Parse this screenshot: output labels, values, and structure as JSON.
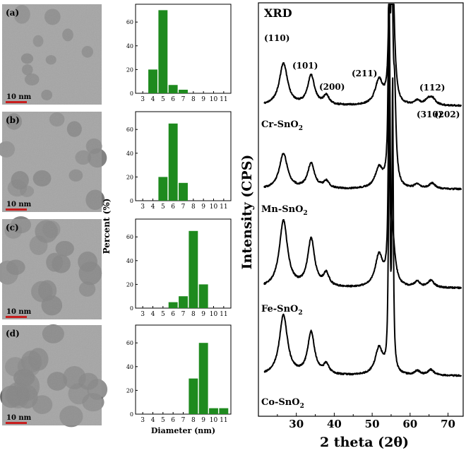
{
  "panels": [
    {
      "label": "(a)",
      "scale_bar": "10 nm"
    },
    {
      "label": "(b)",
      "scale_bar": "10 nm"
    },
    {
      "label": "(c)",
      "scale_bar": "10 nm"
    },
    {
      "label": "(d)",
      "scale_bar": "10 nm"
    }
  ],
  "histograms": {
    "ylabel": "Percent (%)",
    "xlabel": "Diameter (nm)",
    "bar_color": "#1e8a1e",
    "tem_colors": {
      "bg": "#8d8d8d",
      "particle": "#4a4a4a",
      "scale": "#c81e1e"
    }
  },
  "xrd": {
    "title": "XRD",
    "line_color": "#000000",
    "peak_labels": [
      "(110)",
      "(101)",
      "(200)",
      "(211)",
      "(112)",
      "(310)",
      "(202)"
    ],
    "sample_labels": [
      {
        "base": "Cr-SnO",
        "sub": "2"
      },
      {
        "base": "Mn-SnO",
        "sub": "2"
      },
      {
        "base": "Fe-SnO",
        "sub": "2"
      },
      {
        "base": "Co-SnO",
        "sub": "2"
      }
    ]
  },
  "chart_data": [
    {
      "type": "bar",
      "panel": "a",
      "categories": [
        "3",
        "4",
        "5",
        "6",
        "7",
        "8",
        "9",
        "10",
        "11"
      ],
      "values": [
        0,
        20,
        70,
        7,
        3,
        0,
        0,
        0,
        0
      ],
      "ylim": [
        0,
        75
      ],
      "yticks": [
        0,
        20,
        40,
        60
      ],
      "xlabel": "",
      "ylabel": ""
    },
    {
      "type": "bar",
      "panel": "b",
      "categories": [
        "3",
        "4",
        "5",
        "6",
        "7",
        "8",
        "9",
        "10",
        "11"
      ],
      "values": [
        0,
        0,
        20,
        65,
        15,
        0,
        0,
        0,
        0
      ],
      "ylim": [
        0,
        75
      ],
      "yticks": [
        0,
        20,
        40,
        60
      ],
      "xlabel": "",
      "ylabel": "Percent (%)"
    },
    {
      "type": "bar",
      "panel": "c",
      "categories": [
        "3",
        "4",
        "5",
        "6",
        "7",
        "8",
        "9",
        "10",
        "11"
      ],
      "values": [
        0,
        0,
        0,
        5,
        10,
        65,
        20,
        0,
        0
      ],
      "ylim": [
        0,
        75
      ],
      "yticks": [
        0,
        20,
        40,
        60
      ],
      "xlabel": "",
      "ylabel": ""
    },
    {
      "type": "bar",
      "panel": "d",
      "categories": [
        "3",
        "4",
        "5",
        "6",
        "7",
        "8",
        "9",
        "10",
        "11"
      ],
      "values": [
        0,
        0,
        0,
        0,
        0,
        30,
        60,
        5,
        5
      ],
      "ylim": [
        0,
        75
      ],
      "yticks": [
        0,
        20,
        40,
        60
      ],
      "xlabel": "Diameter (nm)",
      "ylabel": ""
    },
    {
      "type": "line",
      "title": "XRD",
      "xlabel": "2 theta (2θ)",
      "ylabel": "Intensity (CPS)",
      "xlim": [
        20,
        74
      ],
      "xticks": [
        30,
        40,
        50,
        60,
        70
      ],
      "series": [
        {
          "name": "Cr-SnO2",
          "baseline": 150,
          "peaks": [
            [
              26.6,
              60,
              1.3
            ],
            [
              33.9,
              42,
              1.1
            ],
            [
              37.9,
              13,
              0.9
            ],
            [
              51.8,
              35,
              1.2
            ],
            [
              54.7,
              400,
              0.22
            ],
            [
              55.3,
              400,
              0.22
            ],
            [
              55.8,
              48,
              0.6
            ],
            [
              61.9,
              6,
              0.9
            ],
            [
              64.7,
              7,
              1.0
            ],
            [
              65.9,
              9,
              1.0
            ]
          ]
        },
        {
          "name": "Mn-SnO2",
          "baseline": 268,
          "peaks": [
            [
              26.6,
              50,
              1.3
            ],
            [
              33.9,
              36,
              1.1
            ],
            [
              37.9,
              10,
              0.9
            ],
            [
              51.8,
              28,
              1.2
            ],
            [
              54.5,
              400,
              0.22
            ],
            [
              55.2,
              400,
              0.22
            ],
            [
              55.9,
              120,
              0.45
            ],
            [
              61.9,
              6,
              0.9
            ],
            [
              65.8,
              8,
              1.0
            ]
          ]
        },
        {
          "name": "Fe-SnO2",
          "baseline": 408,
          "peaks": [
            [
              26.6,
              95,
              1.3
            ],
            [
              33.9,
              68,
              1.1
            ],
            [
              37.9,
              18,
              0.9
            ],
            [
              51.8,
              45,
              1.2
            ],
            [
              54.5,
              400,
              0.22
            ],
            [
              55.4,
              60,
              0.8
            ],
            [
              61.9,
              8,
              0.9
            ],
            [
              65.5,
              10,
              1.0
            ]
          ]
        },
        {
          "name": "Co-SnO2",
          "baseline": 532,
          "peaks": [
            [
              26.6,
              85,
              1.3
            ],
            [
              33.9,
              60,
              1.1
            ],
            [
              37.9,
              14,
              0.9
            ],
            [
              51.8,
              38,
              1.2
            ],
            [
              54.5,
              400,
              0.22
            ],
            [
              55.4,
              400,
              0.2
            ],
            [
              61.9,
              6,
              0.9
            ],
            [
              65.5,
              8,
              1.0
            ]
          ]
        }
      ]
    }
  ]
}
